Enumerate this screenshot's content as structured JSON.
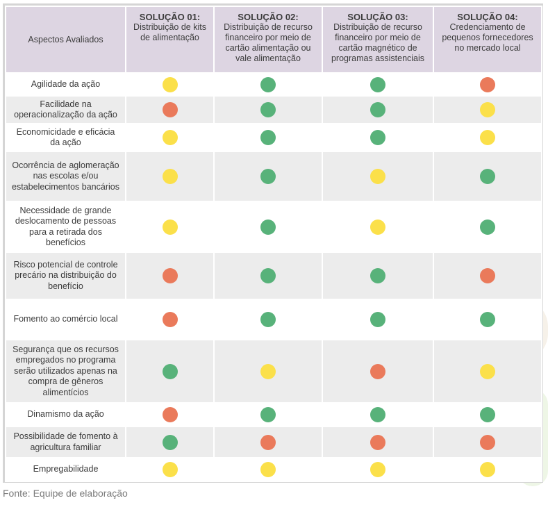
{
  "table": {
    "aspect_header": "Aspectos Avaliados",
    "solutions": [
      {
        "title": "SOLUÇÃO 01:",
        "subtitle": "Distribuição de kits de alimentação"
      },
      {
        "title": "SOLUÇÃO 02:",
        "subtitle": "Distribuição de recurso financeiro por meio de cartão alimentação ou vale alimentação"
      },
      {
        "title": "SOLUÇÃO 03:",
        "subtitle": "Distribuição de recurso financeiro por meio de cartão magnético de programas assistenciais"
      },
      {
        "title": "SOLUÇÃO 04:",
        "subtitle": "Credenciamento de pequenos fornecedores no mercado local"
      }
    ],
    "colors": {
      "yellow": "#fbe04a",
      "green": "#58b27a",
      "red": "#ea7a5b"
    },
    "rows": [
      {
        "aspect": "Agilidade da ação",
        "ratings": [
          "yellow",
          "green",
          "green",
          "red"
        ]
      },
      {
        "aspect": "Facilidade na operacionalização da ação",
        "ratings": [
          "red",
          "green",
          "green",
          "yellow"
        ]
      },
      {
        "aspect": "Economicidade e eficácia da ação",
        "ratings": [
          "yellow",
          "green",
          "green",
          "yellow"
        ]
      },
      {
        "aspect": "Ocorrência de aglomeração nas escolas e/ou estabelecimentos bancários",
        "ratings": [
          "yellow",
          "green",
          "yellow",
          "green"
        ]
      },
      {
        "aspect": "Necessidade de grande deslocamento de pessoas para a retirada dos benefícios",
        "ratings": [
          "yellow",
          "green",
          "yellow",
          "green"
        ]
      },
      {
        "aspect": "Risco potencial de controle precário na distribuição do benefício",
        "ratings": [
          "red",
          "green",
          "green",
          "red"
        ]
      },
      {
        "aspect": "Fomento ao comércio local",
        "ratings": [
          "red",
          "green",
          "green",
          "green"
        ]
      },
      {
        "aspect": "Segurança que os recursos empregados no programa serão utilizados apenas na compra de gêneros alimentícios",
        "ratings": [
          "green",
          "yellow",
          "red",
          "yellow"
        ]
      },
      {
        "aspect": "Dinamismo da ação",
        "ratings": [
          "red",
          "green",
          "green",
          "green"
        ]
      },
      {
        "aspect": "Possibilidade de fomento à agricultura familiar",
        "ratings": [
          "green",
          "red",
          "red",
          "red"
        ]
      },
      {
        "aspect": "Empregabilidade",
        "ratings": [
          "yellow",
          "yellow",
          "yellow",
          "yellow"
        ]
      }
    ]
  },
  "source": "Fonte: Equipe de elaboração"
}
